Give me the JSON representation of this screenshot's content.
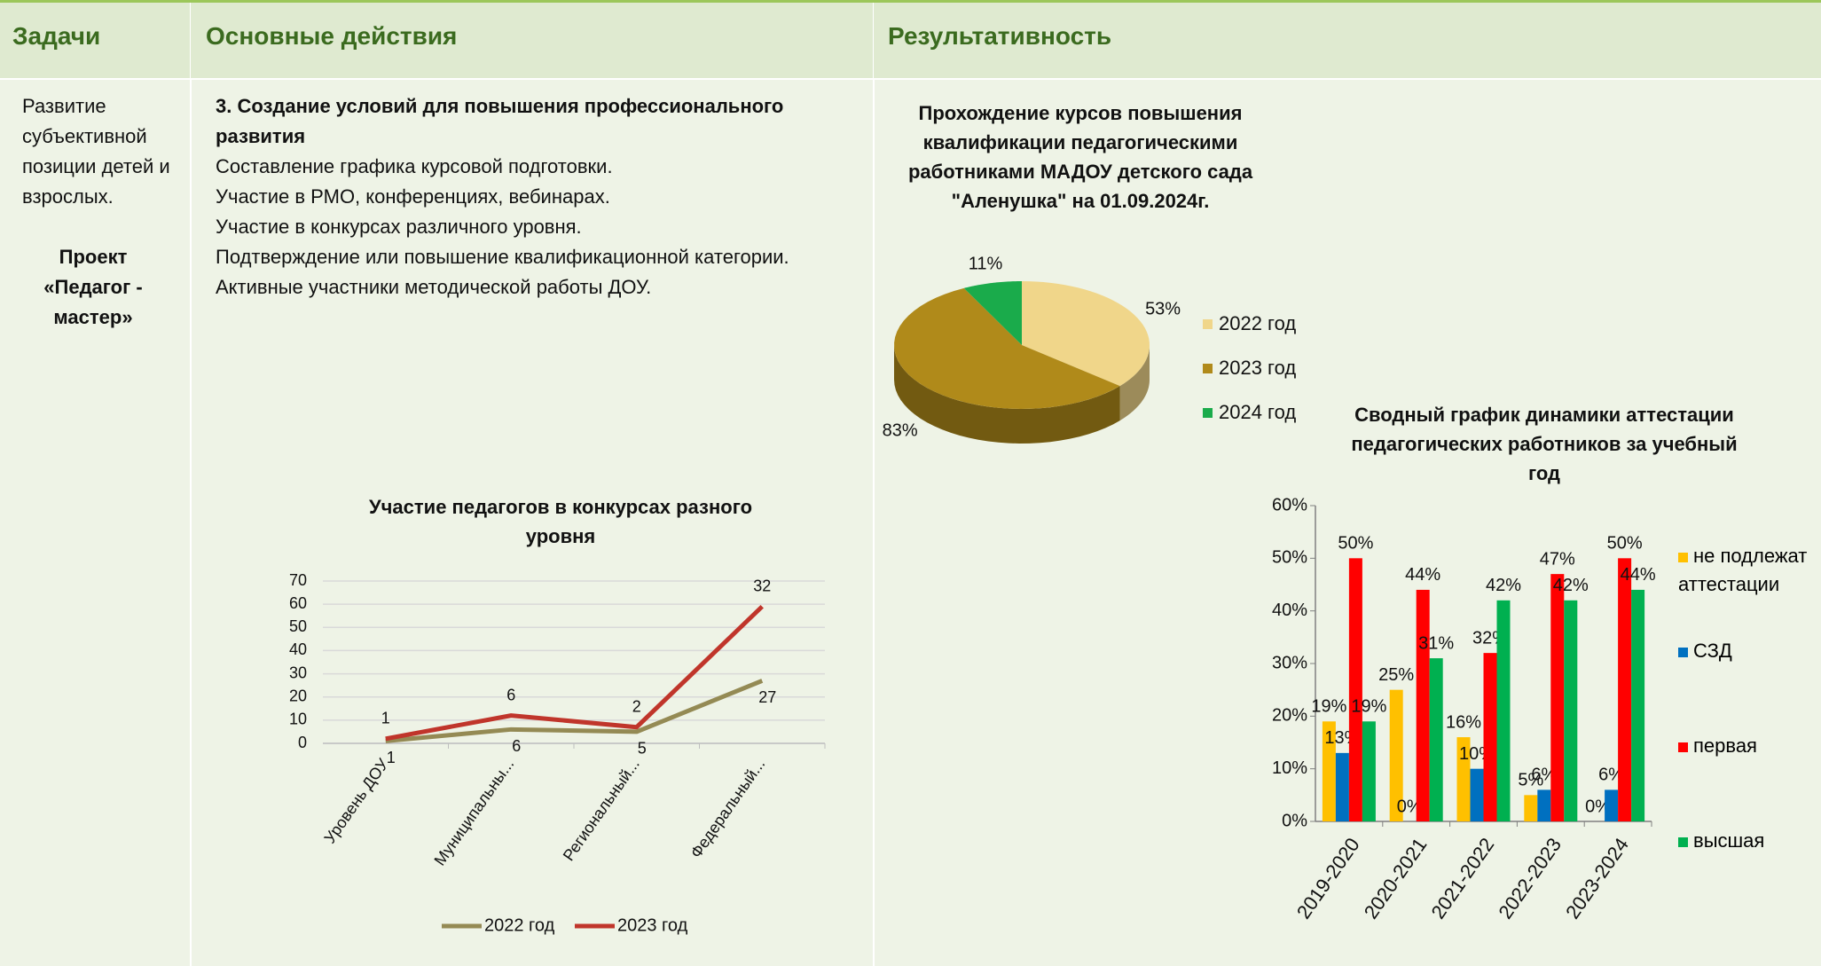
{
  "header": [
    "Задачи",
    "Основные действия",
    "Результативность"
  ],
  "tasks": {
    "text": "Развитие субъективной позиции детей и взрослых.",
    "project": "Проект «Педагог - мастер»"
  },
  "actions": {
    "heading": "3. Создание условий для повышения профессионального развития",
    "items": [
      "Составление графика курсовой подготовки.",
      "Участие в РМО, конференциях, вебинарах.",
      "Участие в конкурсах различного уровня.",
      "Подтверждение или повышение квалификационной категории.",
      "Активные участники методической работы ДОУ."
    ]
  },
  "chart_data": [
    {
      "type": "pie",
      "title": "Прохождение курсов повышения квалификации педагогическими работниками МАДОУ детского сада \"Аленушка\" на 01.09.2024г.",
      "categories": [
        "2022 год",
        "2023 год",
        "2024 год"
      ],
      "values": [
        53,
        83,
        11
      ],
      "value_labels": [
        "53%",
        "83%",
        "11%"
      ],
      "colors": [
        "#f0d68a",
        "#b08a1a",
        "#1aab4b"
      ],
      "legend": "right"
    },
    {
      "type": "line",
      "title": "Участие педагогов в конкурсах разного уровня",
      "categories": [
        "Уровень ДОУ",
        "Муниципальны...",
        "Региональный...",
        "Федеральный..."
      ],
      "series": [
        {
          "name": "2022 год",
          "color": "#948a54",
          "values": [
            1,
            6,
            5,
            27
          ]
        },
        {
          "name": "2023 год",
          "color": "#c0352b",
          "values": [
            1,
            6,
            2,
            32
          ]
        }
      ],
      "stacked": true,
      "ylim": [
        0,
        70
      ],
      "yticks": [
        0,
        10,
        20,
        30,
        40,
        50,
        60,
        70
      ],
      "grid": true,
      "legend": "bottom"
    },
    {
      "type": "bar",
      "title": "Сводный график динамики аттестации педагогических работников за учебный год",
      "categories": [
        "2019-2020",
        "2020-2021",
        "2021-2022",
        "2022-2023",
        "2023-2024"
      ],
      "series": [
        {
          "name": "не подлежат аттестации",
          "color": "#ffc000",
          "values": [
            19,
            25,
            16,
            5,
            0
          ],
          "value_labels": [
            "19%",
            "25%",
            "16%",
            "5%",
            "0%"
          ]
        },
        {
          "name": "СЗД",
          "color": "#0070c0",
          "values": [
            13,
            0,
            10,
            6,
            6
          ],
          "value_labels": [
            "13%",
            "0%",
            "10%",
            "6%",
            "6%"
          ]
        },
        {
          "name": "первая",
          "color": "#ff0000",
          "values": [
            50,
            44,
            32,
            47,
            50
          ],
          "value_labels": [
            "50%",
            "44%",
            "32%",
            "47%",
            "50%"
          ]
        },
        {
          "name": "высшая",
          "color": "#00b050",
          "values": [
            19,
            31,
            42,
            42,
            44
          ],
          "value_labels": [
            "19%",
            "31%",
            "42%",
            "42%",
            "44%"
          ]
        }
      ],
      "ylim": [
        0,
        60
      ],
      "yticks": [
        {
          "value": 0,
          "label": "0%"
        },
        {
          "value": 10,
          "label": "10%"
        },
        {
          "value": 20,
          "label": "20%"
        },
        {
          "value": 30,
          "label": "30%"
        },
        {
          "value": 40,
          "label": "40%"
        },
        {
          "value": 50,
          "label": "50%"
        },
        {
          "value": 60,
          "label": "60%"
        }
      ],
      "legend": "right"
    }
  ]
}
